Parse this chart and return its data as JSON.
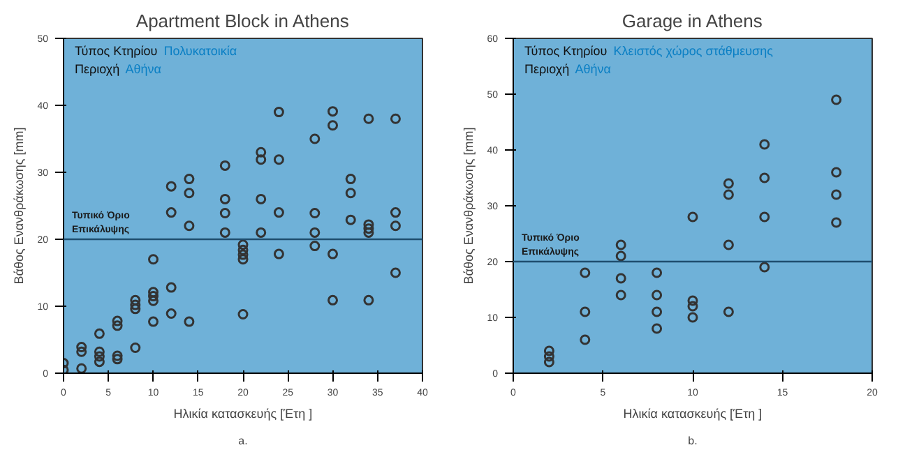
{
  "chart_data": [
    {
      "type": "scatter",
      "title": "Apartment Block in Athens",
      "xlabel": "Ηλικία κατασκευής [Έτη ]",
      "ylabel": "Βάθος Ενανθράκωσης [mm]",
      "xlim": [
        0,
        40
      ],
      "ylim": [
        0,
        50
      ],
      "xticks": [
        0,
        5,
        10,
        15,
        20,
        25,
        30,
        35,
        40
      ],
      "yticks": [
        0,
        10,
        20,
        30,
        40,
        50
      ],
      "marker": "circle",
      "grid": false,
      "annotations": [
        "Τύπος Κτηρίου",
        "Πολυκατοικία",
        "Περιοχή",
        "Αθήνα",
        "a."
      ],
      "ref_lines": [
        {
          "axis": "y",
          "value": 20,
          "label": "Τυπικό Όριο\nΕπικάλυψης",
          "color": "#1f4e6e"
        }
      ],
      "series": [
        {
          "color": "#333333",
          "x": [
            0,
            0,
            2,
            2,
            2,
            4,
            4,
            4,
            4,
            6,
            6,
            6,
            6,
            8,
            8,
            8,
            8,
            10,
            10,
            10,
            10,
            10,
            12,
            12,
            12,
            12,
            14,
            14,
            14,
            14,
            18,
            18,
            18,
            18,
            20,
            20,
            20,
            20,
            20,
            22,
            22,
            22,
            22,
            24,
            24,
            24,
            24,
            28,
            28,
            28,
            28,
            30,
            30,
            30,
            30,
            32,
            32,
            32,
            34,
            34,
            34,
            34,
            34,
            37,
            37,
            37,
            37
          ],
          "values": [
            1.5,
            0.5,
            3.9,
            3.2,
            0.7,
            5.9,
            3.2,
            2.5,
            1.7,
            7.8,
            7.1,
            2.6,
            2.1,
            10.9,
            10.2,
            9.6,
            3.8,
            17,
            12.1,
            11.5,
            10.8,
            7.7,
            27.9,
            24,
            12.8,
            8.9,
            29,
            26.9,
            22,
            7.7,
            31,
            26,
            23.9,
            21,
            19.2,
            18.4,
            17.7,
            17,
            8.8,
            33,
            31.9,
            26,
            21,
            39,
            31.9,
            24,
            17.8,
            35,
            23.9,
            21,
            19,
            39.1,
            37,
            17.8,
            10.9,
            29,
            26.9,
            22.9,
            38,
            22.2,
            21.6,
            21,
            10.9,
            38,
            24,
            22,
            15
          ]
        }
      ]
    },
    {
      "type": "scatter",
      "title": "Garage in Athens",
      "xlabel": "Ηλικία κατασκευής [Έτη ]",
      "ylabel": "Βάθος Ενανθράκωσης [mm]",
      "xlim": [
        0,
        20
      ],
      "ylim": [
        0,
        60
      ],
      "xticks": [
        0,
        5,
        10,
        15,
        20
      ],
      "yticks": [
        0,
        10,
        20,
        30,
        40,
        50,
        60
      ],
      "marker": "circle",
      "grid": false,
      "annotations": [
        "Τύπος Κτηρίου",
        "Κλειστός χώρος στάθμευσης",
        "Περιοχή",
        "Αθήνα",
        "b."
      ],
      "ref_lines": [
        {
          "axis": "y",
          "value": 20,
          "label": "Τυπικό Όριο\nΕπικάλυψης",
          "color": "#1f4e6e"
        }
      ],
      "series": [
        {
          "color": "#333333",
          "x": [
            2,
            2,
            2,
            4,
            4,
            4,
            6,
            6,
            6,
            6,
            8,
            8,
            8,
            8,
            10,
            10,
            10,
            10,
            12,
            12,
            12,
            12,
            14,
            14,
            14,
            14,
            18,
            18,
            18,
            18
          ],
          "values": [
            4,
            3,
            2,
            18,
            11,
            6,
            23,
            21,
            17,
            14,
            18,
            14,
            11,
            8,
            28,
            13,
            12,
            10,
            34,
            32,
            23,
            11,
            41,
            35,
            28,
            19,
            49,
            36,
            32,
            27
          ]
        }
      ]
    }
  ]
}
